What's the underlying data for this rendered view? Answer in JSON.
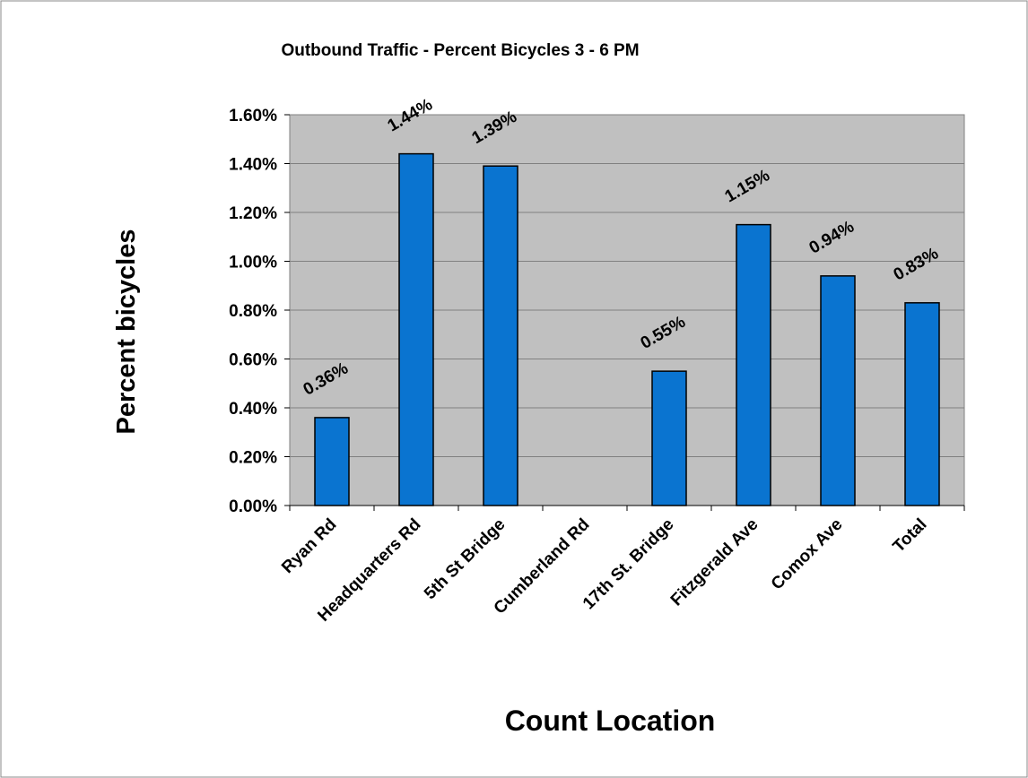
{
  "chart_data": {
    "type": "bar",
    "title": "Outbound Traffic - Percent Bicycles  3 - 6 PM",
    "y_label": "Percent bicycles",
    "x_label": "Count Location",
    "categories": [
      "Ryan Rd",
      "Headquarters Rd",
      "5th St Bridge",
      "Cumberland Rd",
      "17th St. Bridge",
      "Fitzgerald Ave",
      "Comox Ave",
      "Total"
    ],
    "values": [
      0.36,
      1.44,
      1.39,
      null,
      0.55,
      1.15,
      0.94,
      0.83
    ],
    "value_labels": [
      "0.36%",
      "1.44%",
      "1.39%",
      null,
      "0.55%",
      "1.15%",
      "0.94%",
      "0.83%"
    ],
    "color": "#0a74d0",
    "ylim": [
      0,
      1.6
    ],
    "yticks": [
      {
        "value": 0,
        "label": "0.00%"
      },
      {
        "value": 0.2,
        "label": "0.20%"
      },
      {
        "value": 0.4,
        "label": "0.40%"
      },
      {
        "value": 0.6,
        "label": "0.60%"
      },
      {
        "value": 0.8,
        "label": "0.80%"
      },
      {
        "value": 1.0,
        "label": "1.00%"
      },
      {
        "value": 1.2,
        "label": "1.20%"
      },
      {
        "value": 1.4,
        "label": "1.40%"
      },
      {
        "value": 1.6,
        "label": "1.60%"
      }
    ],
    "grid": true
  }
}
